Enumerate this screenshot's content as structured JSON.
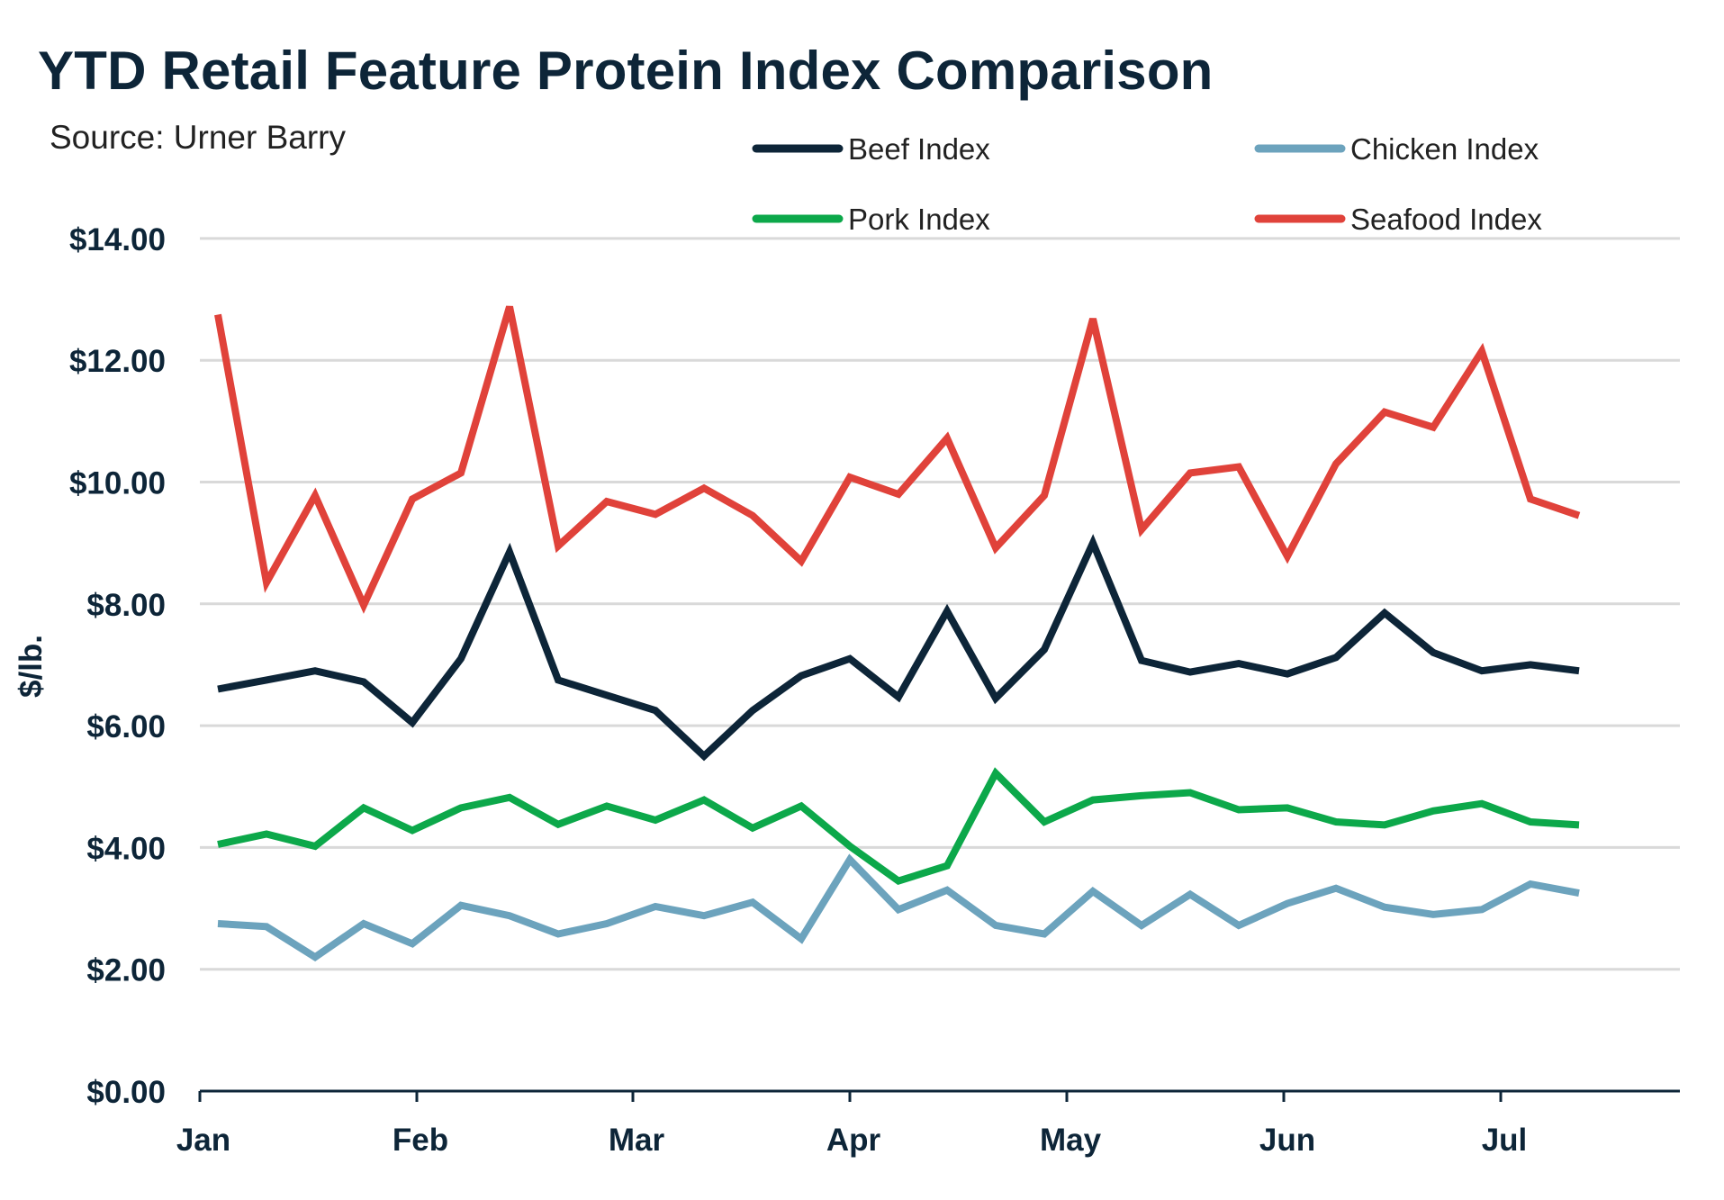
{
  "chart_data": {
    "type": "line",
    "title": "YTD Retail Feature Protein Index Comparison",
    "subtitle": "Source: Urner Barry",
    "ylabel": "$/lb.",
    "xlabel": "",
    "ylim": [
      0,
      14
    ],
    "yticks": [
      0,
      2,
      4,
      6,
      8,
      10,
      12,
      14
    ],
    "ytick_labels": [
      "$0.00",
      "$2.00",
      "$4.00",
      "$6.00",
      "$8.00",
      "$10.00",
      "$12.00",
      "$14.00"
    ],
    "xticks": [
      "Jan",
      "Feb",
      "Mar",
      "Apr",
      "May",
      "Jun",
      "Jul"
    ],
    "grid": true,
    "legend_position": "top-right",
    "series": [
      {
        "name": "Beef Index",
        "color": "#0d2538",
        "values": [
          6.6,
          6.75,
          6.9,
          6.72,
          6.05,
          7.1,
          8.85,
          6.75,
          6.5,
          6.25,
          5.5,
          6.25,
          6.82,
          7.1,
          6.47,
          7.88,
          6.45,
          7.25,
          9.0,
          7.07,
          6.88,
          7.02,
          6.85,
          7.12,
          7.85,
          7.2,
          6.9,
          7.0,
          6.9
        ]
      },
      {
        "name": "Chicken Index",
        "color": "#6ca3bd",
        "values": [
          2.75,
          2.7,
          2.2,
          2.75,
          2.42,
          3.05,
          2.88,
          2.58,
          2.75,
          3.03,
          2.88,
          3.1,
          2.5,
          3.8,
          2.98,
          3.3,
          2.72,
          2.58,
          3.28,
          2.72,
          3.23,
          2.72,
          3.08,
          3.33,
          3.02,
          2.9,
          2.98,
          3.4,
          3.25
        ]
      },
      {
        "name": "Pork Index",
        "color": "#0ca84a",
        "values": [
          4.05,
          4.22,
          4.02,
          4.65,
          4.28,
          4.65,
          4.82,
          4.38,
          4.68,
          4.45,
          4.78,
          4.32,
          4.68,
          4.02,
          3.45,
          3.7,
          5.22,
          4.42,
          4.78,
          4.85,
          4.9,
          4.62,
          4.65,
          4.42,
          4.37,
          4.6,
          4.72,
          4.42,
          4.37
        ]
      },
      {
        "name": "Seafood Index",
        "color": "#e0423a",
        "values": [
          12.75,
          8.35,
          9.78,
          7.98,
          9.72,
          10.15,
          12.88,
          8.95,
          9.68,
          9.47,
          9.9,
          9.45,
          8.7,
          10.08,
          9.8,
          10.72,
          8.92,
          9.78,
          12.68,
          9.22,
          10.15,
          10.25,
          8.78,
          10.3,
          11.15,
          10.9,
          12.15,
          9.72,
          9.45
        ]
      }
    ]
  }
}
